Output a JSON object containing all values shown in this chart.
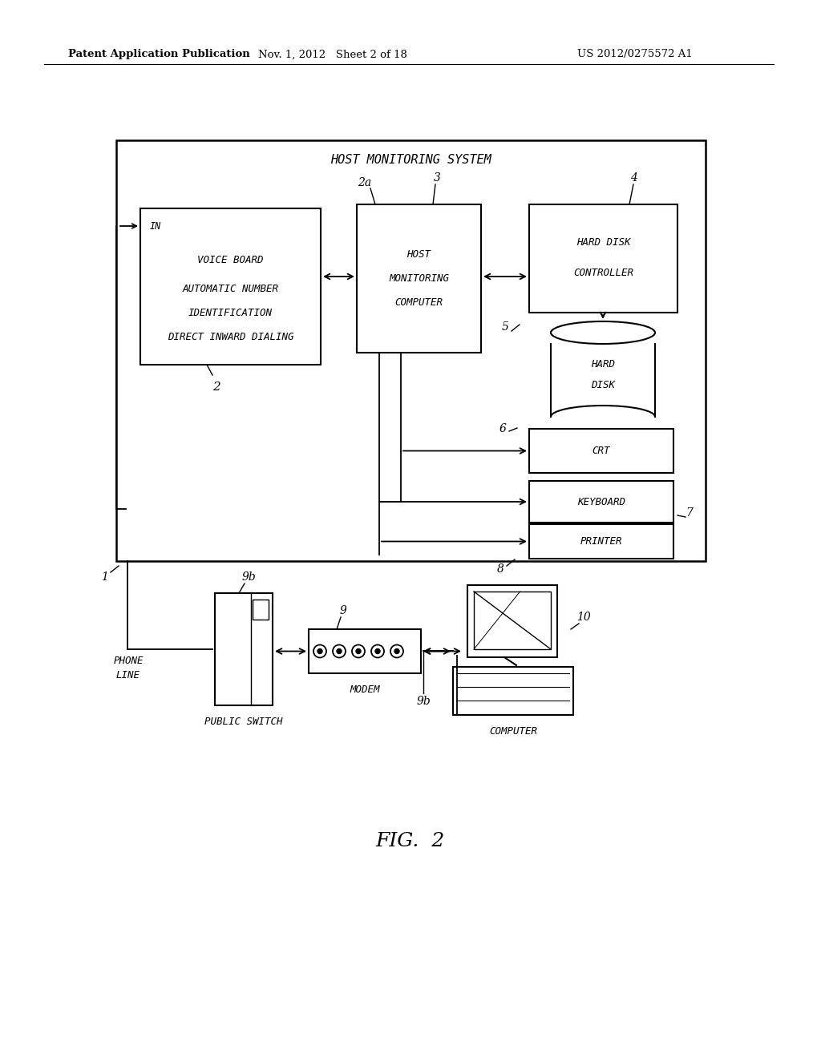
{
  "bg_color": "#ffffff",
  "header_left": "Patent Application Publication",
  "header_mid": "Nov. 1, 2012   Sheet 2 of 18",
  "header_right": "US 2012/0275572 A1",
  "fig_label": "FIG.  2",
  "font_color": "#000000",
  "line_color": "#000000"
}
